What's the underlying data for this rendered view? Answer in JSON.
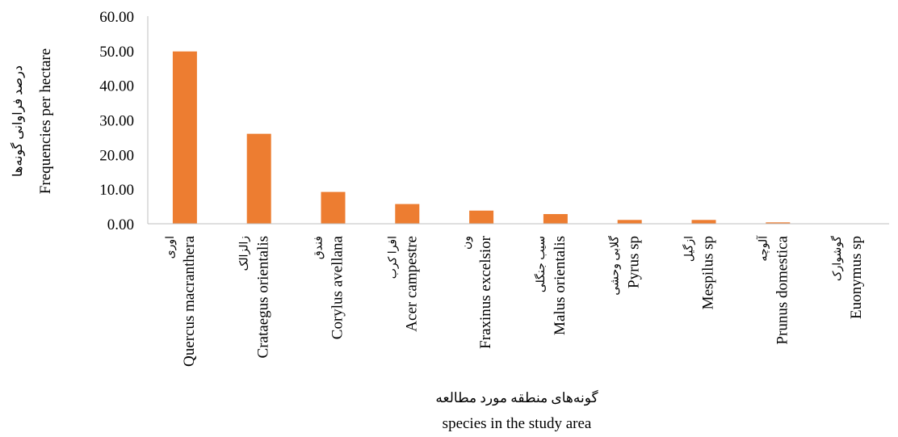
{
  "chart_data": {
    "type": "bar",
    "categories": [
      {
        "fa": "اوری",
        "en": "Quercus macranthera"
      },
      {
        "fa": "زالزالک",
        "en": "Crataegus orientalis"
      },
      {
        "fa": "فندق",
        "en": "Corylus avellana"
      },
      {
        "fa": "افرا کرب",
        "en": "Acer campestre"
      },
      {
        "fa": "ون",
        "en": "Fraxinus excelsior"
      },
      {
        "fa": "سیب جنگلی",
        "en": "Malus orientalis"
      },
      {
        "fa": "گلابی وحشی",
        "en": "Pyrus sp"
      },
      {
        "fa": "ازگیل",
        "en": "Mespilus sp"
      },
      {
        "fa": "آلوچه",
        "en": "Prunus domestica"
      },
      {
        "fa": "گوشوارک",
        "en": "Euonymus sp"
      }
    ],
    "values": [
      49.8,
      26.0,
      9.2,
      5.7,
      3.8,
      2.8,
      1.1,
      1.1,
      0.4,
      0.1
    ],
    "ylim": [
      0,
      60
    ],
    "yticks": [
      "0.00",
      "10.00",
      "20.00",
      "30.00",
      "40.00",
      "50.00",
      "60.00"
    ],
    "ylabel_fa": "درصد فراوانی گونه‌ها",
    "ylabel_en": "Frequencies per hectare",
    "xlabel_fa": "گونه‌های منطقه مورد مطالعه",
    "xlabel_en": "species in the study area",
    "bar_color": "#ED7D31",
    "grid": false,
    "legend": "none"
  }
}
